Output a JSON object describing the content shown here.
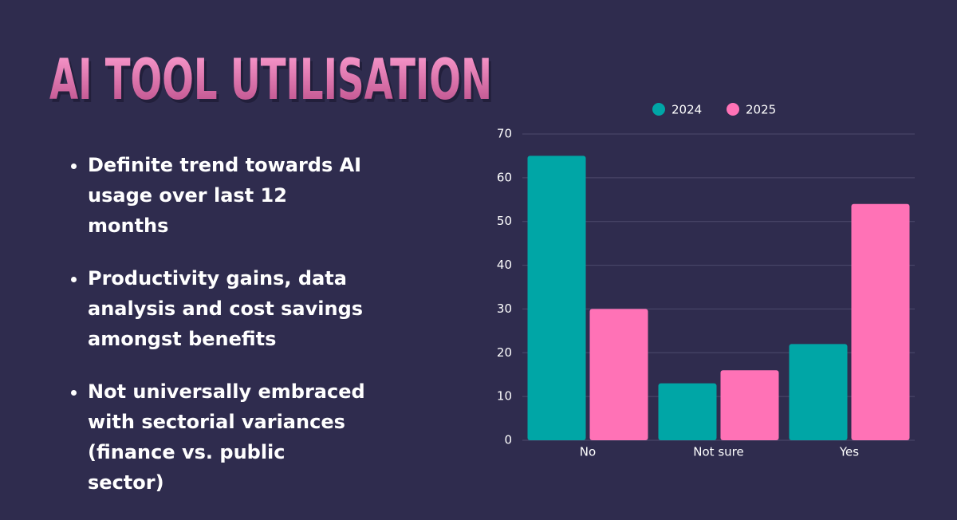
{
  "title": "AI TOOL UTILISATION",
  "bullets": [
    "Definite trend towards AI usage over last 12 months",
    "Productivity gains, data analysis and cost savings amongst benefits",
    "Not universally embraced with sectorial variances (finance vs. public sector)"
  ],
  "chart_data": {
    "type": "bar",
    "categories": [
      "No",
      "Not sure",
      "Yes"
    ],
    "series": [
      {
        "name": "2024",
        "color": "#00a6a6",
        "values": [
          65,
          13,
          22
        ]
      },
      {
        "name": "2025",
        "color": "#ff72b6",
        "values": [
          30,
          16,
          54
        ]
      }
    ],
    "ylim": [
      0,
      70
    ],
    "yticks": [
      0,
      10,
      20,
      30,
      40,
      50,
      60,
      70
    ],
    "grid": true,
    "legend": "top"
  }
}
